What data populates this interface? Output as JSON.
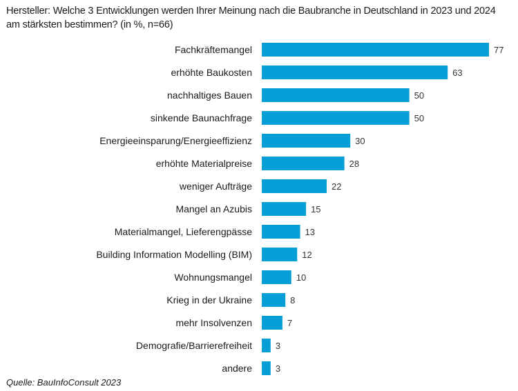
{
  "chart_data": {
    "type": "bar",
    "orientation": "horizontal",
    "title": "Hersteller: Welche 3 Entwicklungen werden Ihrer Meinung nach die Baubranche in Deutschland in 2023 und 2024 am stärksten bestimmen? (in %, n=66)",
    "xlabel": "",
    "ylabel": "",
    "xlim": [
      0,
      77
    ],
    "grid": false,
    "legend": null,
    "bar_color": "#069ed6",
    "categories": [
      "Fachkräftemangel",
      "erhöhte Baukosten",
      "nachhaltiges Bauen",
      "sinkende Baunachfrage",
      "Energieeinsparung/Energieeffizienz",
      "erhöhte Materialpreise",
      "weniger Aufträge",
      "Mangel an Azubis",
      "Materialmangel, Lieferengpässe",
      "Building Information Modelling (BIM)",
      "Wohnungsmangel",
      "Krieg in der Ukraine",
      "mehr Insolvenzen",
      "Demografie/Barrierefreiheit",
      "andere"
    ],
    "values": [
      77,
      63,
      50,
      50,
      30,
      28,
      22,
      15,
      13,
      12,
      10,
      8,
      7,
      3,
      3
    ],
    "source": "Quelle: BauInfoConsult 2023"
  }
}
